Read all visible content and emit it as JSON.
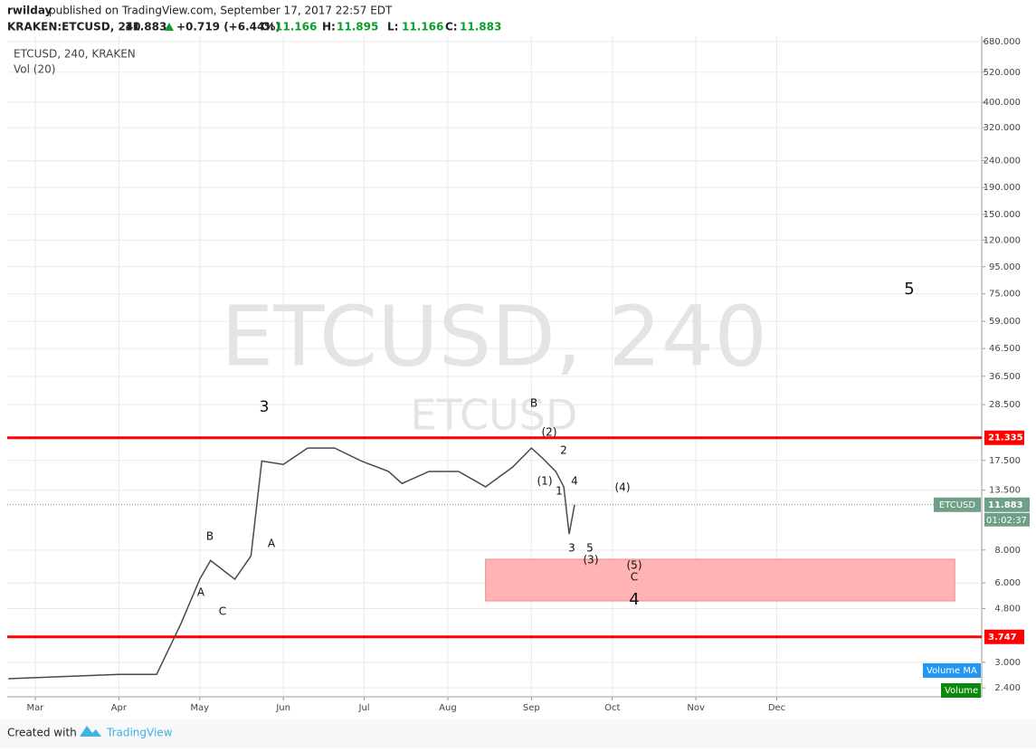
{
  "header": {
    "author": "rwilday",
    "published": "published on TradingView.com, September 17, 2017 22:57 EDT",
    "symbol": "KRAKEN:ETCUSD, 240",
    "price": "11.883",
    "change": "+0.719 (+6.44%)",
    "ohlc": [
      {
        "label": "O:",
        "value": "11.166"
      },
      {
        "label": "H:",
        "value": "11.895"
      },
      {
        "label": "L:",
        "value": "11.166"
      },
      {
        "label": "C:",
        "value": "11.883"
      }
    ]
  },
  "chart_data": {
    "type": "line",
    "legend_title": "ETCUSD, 240, KRAKEN",
    "indicator": "Vol (20)",
    "watermark": "ETCUSD, 240",
    "watermark_symbol": "ETCUSD",
    "series": [
      {
        "name": "ETCUSD",
        "color": "#4a4a4a",
        "x": [
          50,
          91,
          105,
          114,
          121,
          125,
          134,
          140,
          144,
          152,
          161,
          171,
          181,
          191,
          196,
          206,
          217,
          227,
          237,
          244,
          248,
          253,
          256,
          258,
          260
        ],
        "values": [
          2.6,
          2.7,
          2.7,
          4.2,
          6.2,
          7.3,
          6.2,
          7.6,
          17.4,
          16.9,
          19.5,
          19.5,
          17.4,
          15.9,
          14.3,
          15.9,
          15.9,
          13.9,
          16.5,
          19.5,
          17.9,
          15.9,
          13.9,
          9.2,
          11.883
        ]
      }
    ],
    "countdown": "01:02:37",
    "volume_legend": [
      {
        "name": "Volume MA",
        "color": "#2196f3"
      },
      {
        "name": "Volume",
        "color": "#0a8a0a"
      }
    ],
    "log_scale": true,
    "grid": true,
    "xlim": [
      49.6,
      411
    ],
    "ylim": [
      2.22,
      712
    ],
    "xticks": [
      {
        "value": 60,
        "label": "Mar"
      },
      {
        "value": 91,
        "label": "Apr"
      },
      {
        "value": 121,
        "label": "May"
      },
      {
        "value": 152,
        "label": "Jun"
      },
      {
        "value": 182,
        "label": "Jul"
      },
      {
        "value": 213,
        "label": "Aug"
      },
      {
        "value": 244,
        "label": "Sep"
      },
      {
        "value": 274,
        "label": "Oct"
      },
      {
        "value": 305,
        "label": "Nov"
      },
      {
        "value": 335,
        "label": "Dec"
      }
    ],
    "yticks": [
      {
        "value": 2.4,
        "label": "2.400"
      },
      {
        "value": 3,
        "label": "3.000"
      },
      {
        "value": 4.8,
        "label": "4.800"
      },
      {
        "value": 6,
        "label": "6.000"
      },
      {
        "value": 8,
        "label": "8.000"
      },
      {
        "value": 13.5,
        "label": "13.500"
      },
      {
        "value": 17.5,
        "label": "17.500"
      },
      {
        "value": 28.5,
        "label": "28.500"
      },
      {
        "value": 36.5,
        "label": "36.500"
      },
      {
        "value": 46.5,
        "label": "46.500"
      },
      {
        "value": 59,
        "label": "59.000"
      },
      {
        "value": 75,
        "label": "75.000"
      },
      {
        "value": 95,
        "label": "95.000"
      },
      {
        "value": 120,
        "label": "120.000"
      },
      {
        "value": 150,
        "label": "150.000"
      },
      {
        "value": 190,
        "label": "190.000"
      },
      {
        "value": 240,
        "label": "240.000"
      },
      {
        "value": 320,
        "label": "320.000"
      },
      {
        "value": 400,
        "label": "400.000"
      },
      {
        "value": 520,
        "label": "520.000"
      },
      {
        "value": 680,
        "label": "680.000"
      }
    ],
    "levels": [
      {
        "value": 21.335,
        "color": "#ff0000"
      },
      {
        "value": 3.747,
        "color": "#ff0000"
      }
    ],
    "zone": {
      "x": [
        227,
        401
      ],
      "y": [
        5.13,
        7.38
      ],
      "color": "#ffb3b3"
    },
    "annotations": [
      "3",
      "B",
      "A",
      "C",
      "A",
      "B",
      "(2)",
      "2",
      "(1)",
      "1",
      "4",
      "3",
      "5",
      "(3)",
      "(4)",
      "(5)",
      "C",
      "4",
      "5"
    ]
  },
  "footer": {
    "created": "Created with",
    "brand": "TradingView"
  }
}
